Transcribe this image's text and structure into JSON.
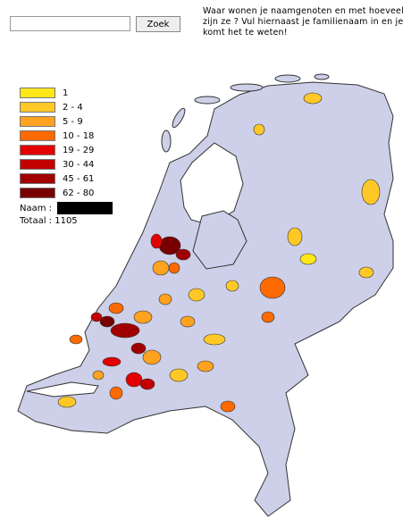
{
  "search": {
    "button": "Zoek"
  },
  "intro": "Waar wonen je naamgenoten en met hoeveel zijn ze ? Vul hiernaast je familienaam in en je komt het te weten!",
  "legend": [
    {
      "label": "1",
      "color": "#ffe81a"
    },
    {
      "label": "2 - 4",
      "color": "#ffc826"
    },
    {
      "label": "5 - 9",
      "color": "#ffa21f"
    },
    {
      "label": "10 - 18",
      "color": "#ff6a00"
    },
    {
      "label": "19 - 29",
      "color": "#e40000"
    },
    {
      "label": "30 - 44",
      "color": "#c20000"
    },
    {
      "label": "45 - 61",
      "color": "#a10000"
    },
    {
      "label": "62 - 80",
      "color": "#780000"
    }
  ],
  "naam": {
    "label": "Naam :"
  },
  "totaal": {
    "label": "Totaal :",
    "value": 1105
  }
}
